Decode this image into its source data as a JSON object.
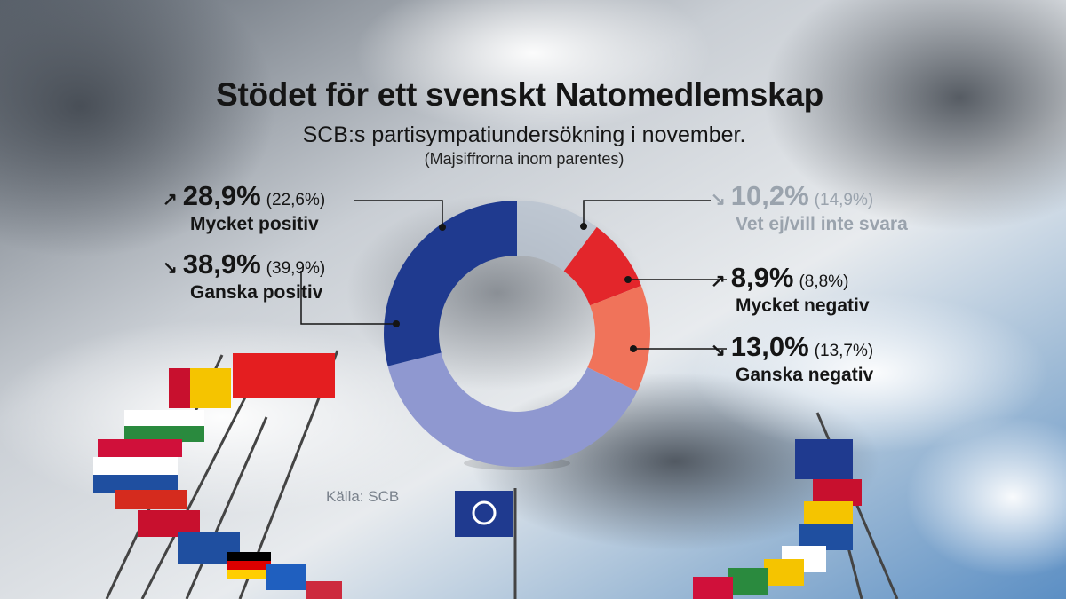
{
  "chart_data": {
    "type": "donut",
    "title": "Stödet för ett svenskt Natomedlemskap",
    "subtitle": "SCB:s partisympatiundersökning i november.",
    "note": "(Majsiffrorna inom parentes)",
    "source": "Källa: SCB",
    "slices": [
      {
        "label": "Vet ej/vill inte svara",
        "value": 10.2,
        "value_text": "10,2%",
        "previous_text": "(14,9%)",
        "trend": "down",
        "arrow": "↘",
        "color": "#b9c3cf"
      },
      {
        "label": "Mycket negativ",
        "value": 8.9,
        "value_text": "8,9%",
        "previous_text": "(8,8%)",
        "trend": "up",
        "arrow": "↗",
        "color": "#e3262b"
      },
      {
        "label": "Ganska negativ",
        "value": 13.0,
        "value_text": "13,0%",
        "previous_text": "(13,7%)",
        "trend": "down",
        "arrow": "↘",
        "color": "#f0735a"
      },
      {
        "label": "Ganska positiv",
        "value": 38.9,
        "value_text": "38,9%",
        "previous_text": "(39,9%)",
        "trend": "down",
        "arrow": "↘",
        "color": "#8f98d0"
      },
      {
        "label": "Mycket positiv",
        "value": 28.9,
        "value_text": "28,9%",
        "previous_text": "(22,6%)",
        "trend": "up",
        "arrow": "↗",
        "color": "#1f3a8f"
      }
    ]
  }
}
